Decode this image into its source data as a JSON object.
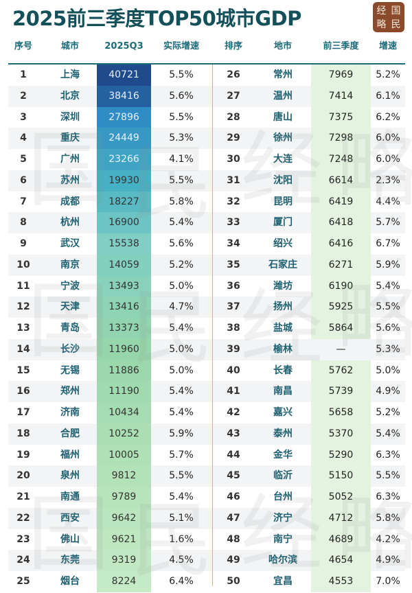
{
  "title": "2025前三季度TOP50城市GDP",
  "logo_text": [
    "经",
    "国",
    "略",
    "民"
  ],
  "watermark_text": [
    "国",
    "民",
    "经",
    "略"
  ],
  "colors": {
    "title": "#14505a",
    "header": "#1b6b7a",
    "logo_bg": "#8b4a2b",
    "right_value_col": "#e3f3df",
    "divider": "#d8b27a"
  },
  "headers": [
    "序号",
    "城市",
    "2025Q3",
    "实际增速",
    "排序",
    "地市",
    "前三季度",
    "增速"
  ],
  "chart_data": {
    "type": "table",
    "title": "2025前三季度TOP50城市GDP",
    "columns": [
      "序号",
      "城市",
      "2025Q3",
      "实际增速",
      "排序",
      "地市",
      "前三季度",
      "增速"
    ],
    "left": [
      [
        "1",
        "上海",
        "40721",
        "5.5%"
      ],
      [
        "2",
        "北京",
        "38416",
        "5.6%"
      ],
      [
        "3",
        "深圳",
        "27896",
        "5.5%"
      ],
      [
        "4",
        "重庆",
        "24449",
        "5.3%"
      ],
      [
        "5",
        "广州",
        "23266",
        "4.1%"
      ],
      [
        "6",
        "苏州",
        "19930",
        "5.5%"
      ],
      [
        "7",
        "成都",
        "18227",
        "5.8%"
      ],
      [
        "8",
        "杭州",
        "16900",
        "5.4%"
      ],
      [
        "9",
        "武汉",
        "15538",
        "5.6%"
      ],
      [
        "10",
        "南京",
        "14059",
        "5.2%"
      ],
      [
        "11",
        "宁波",
        "13493",
        "5.0%"
      ],
      [
        "12",
        "天津",
        "13416",
        "4.7%"
      ],
      [
        "13",
        "青岛",
        "13373",
        "5.4%"
      ],
      [
        "14",
        "长沙",
        "11960",
        "5.0%"
      ],
      [
        "15",
        "无锡",
        "11886",
        "5.0%"
      ],
      [
        "16",
        "郑州",
        "11190",
        "5.4%"
      ],
      [
        "17",
        "济南",
        "10434",
        "5.4%"
      ],
      [
        "18",
        "合肥",
        "10252",
        "5.9%"
      ],
      [
        "19",
        "福州",
        "10005",
        "5.7%"
      ],
      [
        "20",
        "泉州",
        "9812",
        "5.5%"
      ],
      [
        "21",
        "南通",
        "9789",
        "5.4%"
      ],
      [
        "22",
        "西安",
        "9642",
        "5.1%"
      ],
      [
        "23",
        "佛山",
        "9621",
        "1.6%"
      ],
      [
        "24",
        "东莞",
        "9319",
        "4.5%"
      ],
      [
        "25",
        "烟台",
        "8224",
        "6.4%"
      ]
    ],
    "right": [
      [
        "26",
        "常州",
        "7969",
        "5.2%"
      ],
      [
        "27",
        "温州",
        "7414",
        "6.1%"
      ],
      [
        "28",
        "唐山",
        "7375",
        "6.2%"
      ],
      [
        "29",
        "徐州",
        "7298",
        "6.0%"
      ],
      [
        "30",
        "大连",
        "7248",
        "6.0%"
      ],
      [
        "31",
        "沈阳",
        "6614",
        "2.3%"
      ],
      [
        "32",
        "昆明",
        "6419",
        "4.4%"
      ],
      [
        "33",
        "厦门",
        "6418",
        "5.7%"
      ],
      [
        "34",
        "绍兴",
        "6416",
        "6.7%"
      ],
      [
        "35",
        "石家庄",
        "6271",
        "5.9%"
      ],
      [
        "36",
        "潍坊",
        "6190",
        "5.4%"
      ],
      [
        "37",
        "扬州",
        "5925",
        "5.5%"
      ],
      [
        "38",
        "盐城",
        "5864",
        "5.6%"
      ],
      [
        "39",
        "榆林",
        "—",
        "5.3%"
      ],
      [
        "40",
        "长春",
        "5762",
        "5.0%"
      ],
      [
        "41",
        "南昌",
        "5739",
        "4.9%"
      ],
      [
        "42",
        "嘉兴",
        "5658",
        "5.2%"
      ],
      [
        "43",
        "泰州",
        "5370",
        "5.4%"
      ],
      [
        "44",
        "金华",
        "5290",
        "6.3%"
      ],
      [
        "45",
        "临沂",
        "5150",
        "5.5%"
      ],
      [
        "46",
        "台州",
        "5052",
        "6.3%"
      ],
      [
        "47",
        "济宁",
        "4712",
        "5.8%"
      ],
      [
        "48",
        "南宁",
        "4689",
        "4.2%"
      ],
      [
        "49",
        "哈尔滨",
        "4654",
        "4.9%"
      ],
      [
        "50",
        "宜昌",
        "4553",
        "7.0%"
      ]
    ]
  }
}
